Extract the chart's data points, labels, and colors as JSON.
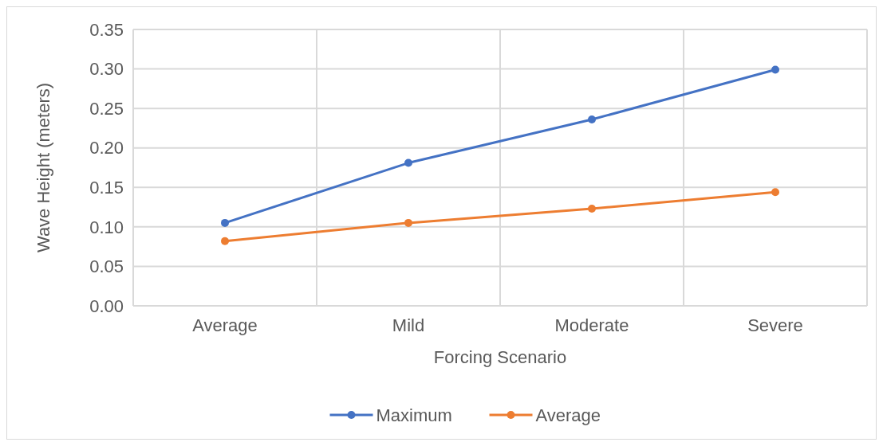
{
  "chart_data": {
    "type": "line",
    "xlabel": "Forcing Scenario",
    "ylabel": "Wave Height (meters)",
    "categories": [
      "Average",
      "Mild",
      "Moderate",
      "Severe"
    ],
    "series": [
      {
        "name": "Maximum",
        "color": "#4472c4",
        "values": [
          0.105,
          0.181,
          0.236,
          0.299
        ]
      },
      {
        "name": "Average",
        "color": "#ed7d31",
        "values": [
          0.082,
          0.105,
          0.123,
          0.144
        ]
      }
    ],
    "ylim": [
      0,
      0.35
    ],
    "yticks": [
      {
        "value": 0,
        "label": "0.00"
      },
      {
        "value": 0.05,
        "label": "0.05"
      },
      {
        "value": 0.1,
        "label": "0.10"
      },
      {
        "value": 0.15,
        "label": "0.15"
      },
      {
        "value": 0.2,
        "label": "0.20"
      },
      {
        "value": 0.25,
        "label": "0.25"
      },
      {
        "value": 0.3,
        "label": "0.30"
      },
      {
        "value": 0.35,
        "label": "0.35"
      }
    ],
    "grid": true,
    "legend": "bottom",
    "marker": "circle",
    "line_style": "solid"
  }
}
